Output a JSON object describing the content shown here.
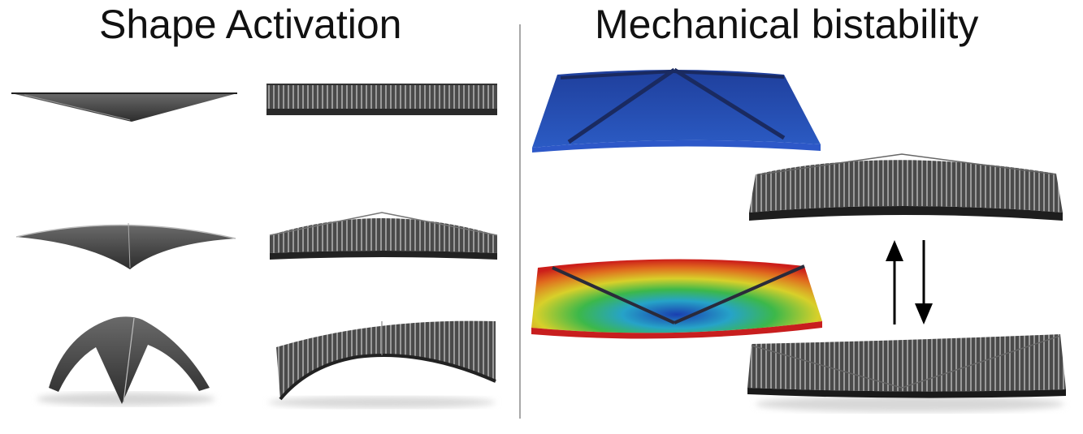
{
  "left_panel": {
    "title": "Shape Activation"
  },
  "right_panel": {
    "title": "Mechanical bistability"
  },
  "colors": {
    "text": "#111111",
    "divider": "#a8a8a8",
    "shell_dark": "#3a3a3a",
    "shell_light": "#8a8a8a",
    "sim_blue": "#2346a8",
    "sim_green": "#2fa838",
    "sim_red": "#d8281c"
  },
  "icons": [
    "arrow-up-icon",
    "arrow-down-icon"
  ]
}
